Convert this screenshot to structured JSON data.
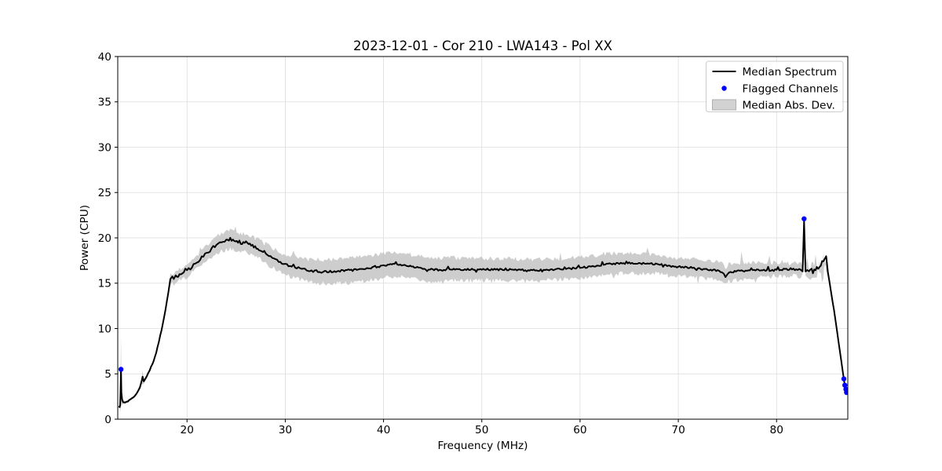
{
  "figure": {
    "title": "2023-12-01 - Cor 210 - LWA143 - Pol XX"
  },
  "chart_data": {
    "type": "line",
    "title": "2023-12-01 - Cor 210 - LWA143 - Pol XX",
    "xlabel": "Frequency (MHz)",
    "ylabel": "Power (CPU)",
    "xlim": [
      12.95,
      87.25
    ],
    "ylim": [
      0,
      40
    ],
    "x_ticks": [
      20,
      30,
      40,
      50,
      60,
      70,
      80
    ],
    "y_ticks": [
      0,
      5,
      10,
      15,
      20,
      25,
      30,
      35,
      40
    ],
    "grid": true,
    "grid_color": "#dcdcdc",
    "legend": {
      "position": "upper right",
      "entries": [
        {
          "label": "Median Spectrum",
          "type": "line",
          "color": "#000000"
        },
        {
          "label": "Flagged Channels",
          "type": "dot",
          "color": "#0000ff"
        },
        {
          "label": "Median Abs. Dev.",
          "type": "patch",
          "color": "#cccccc"
        }
      ]
    },
    "median_spectrum": {
      "name": "Median Spectrum",
      "color": "#000000",
      "anchors_format": [
        "freq_mhz",
        "median_power",
        "median_abs_dev"
      ],
      "anchors": [
        [
          13.05,
          1.45,
          0.12
        ],
        [
          13.15,
          1.35,
          0.2
        ],
        [
          13.2,
          1.6,
          0.3
        ],
        [
          13.24,
          3.2,
          2.4
        ],
        [
          13.28,
          5.5,
          3.45
        ],
        [
          13.32,
          3.0,
          1.6
        ],
        [
          13.4,
          2.1,
          0.4
        ],
        [
          13.5,
          1.9,
          0.25
        ],
        [
          13.7,
          1.8,
          0.15
        ],
        [
          14.0,
          2.0,
          0.12
        ],
        [
          14.4,
          2.3,
          0.12
        ],
        [
          14.8,
          2.7,
          0.15
        ],
        [
          15.2,
          3.5,
          0.25
        ],
        [
          15.4,
          4.3,
          0.45
        ],
        [
          15.48,
          4.65,
          0.75
        ],
        [
          15.6,
          4.15,
          0.25
        ],
        [
          15.9,
          4.75,
          0.2
        ],
        [
          16.2,
          5.4,
          0.2
        ],
        [
          16.6,
          6.4,
          0.2
        ],
        [
          17.0,
          7.9,
          0.25
        ],
        [
          17.4,
          9.8,
          0.3
        ],
        [
          17.8,
          12.0,
          0.35
        ],
        [
          18.1,
          14.0,
          0.45
        ],
        [
          18.3,
          15.3,
          0.55
        ],
        [
          18.5,
          15.6,
          0.55
        ],
        [
          18.65,
          15.45,
          0.5
        ],
        [
          18.85,
          15.7,
          0.55
        ],
        [
          19.1,
          15.85,
          0.6
        ],
        [
          19.5,
          16.0,
          0.6
        ],
        [
          20.0,
          16.35,
          0.65
        ],
        [
          20.5,
          16.8,
          0.7
        ],
        [
          21.0,
          17.3,
          0.75
        ],
        [
          21.5,
          17.8,
          0.8
        ],
        [
          22.0,
          18.3,
          0.85
        ],
        [
          22.5,
          18.75,
          0.9
        ],
        [
          23.0,
          19.15,
          0.95
        ],
        [
          23.5,
          19.5,
          1.0
        ],
        [
          24.0,
          19.75,
          1.05
        ],
        [
          24.4,
          19.85,
          1.05
        ],
        [
          24.8,
          19.6,
          1.0
        ],
        [
          25.2,
          19.55,
          1.0
        ],
        [
          25.6,
          19.4,
          1.0
        ],
        [
          26.0,
          19.5,
          1.0
        ],
        [
          26.4,
          19.3,
          1.0
        ],
        [
          26.8,
          19.05,
          1.0
        ],
        [
          27.2,
          18.85,
          1.0
        ],
        [
          27.6,
          18.55,
          1.0
        ],
        [
          28.0,
          18.25,
          1.05
        ],
        [
          28.5,
          17.95,
          1.05
        ],
        [
          29.0,
          17.6,
          1.1
        ],
        [
          29.5,
          17.35,
          1.1
        ],
        [
          30.0,
          17.05,
          1.1
        ],
        [
          30.5,
          16.9,
          1.1
        ],
        [
          31.0,
          16.75,
          1.15
        ],
        [
          31.5,
          16.6,
          1.15
        ],
        [
          32.0,
          16.5,
          1.2
        ],
        [
          32.5,
          16.4,
          1.25
        ],
        [
          33.0,
          16.32,
          1.3
        ],
        [
          33.5,
          16.28,
          1.3
        ],
        [
          34.0,
          16.25,
          1.35
        ],
        [
          35.0,
          16.3,
          1.35
        ],
        [
          36.0,
          16.4,
          1.35
        ],
        [
          37.0,
          16.5,
          1.35
        ],
        [
          38.0,
          16.6,
          1.35
        ],
        [
          39.0,
          16.75,
          1.35
        ],
        [
          40.0,
          16.9,
          1.35
        ],
        [
          40.7,
          17.05,
          1.35
        ],
        [
          41.4,
          17.1,
          1.3
        ],
        [
          42.0,
          17.0,
          1.3
        ],
        [
          43.0,
          16.8,
          1.3
        ],
        [
          44.0,
          16.6,
          1.3
        ],
        [
          45.0,
          16.5,
          1.3
        ],
        [
          46.0,
          16.45,
          1.3
        ],
        [
          47.0,
          16.55,
          1.25
        ],
        [
          48.0,
          16.5,
          1.25
        ],
        [
          49.0,
          16.5,
          1.2
        ],
        [
          50.0,
          16.55,
          1.2
        ],
        [
          51.0,
          16.5,
          1.2
        ],
        [
          52.0,
          16.5,
          1.2
        ],
        [
          53.0,
          16.5,
          1.2
        ],
        [
          54.0,
          16.45,
          1.2
        ],
        [
          55.0,
          16.4,
          1.2
        ],
        [
          56.0,
          16.45,
          1.2
        ],
        [
          57.0,
          16.5,
          1.15
        ],
        [
          58.0,
          16.55,
          1.15
        ],
        [
          59.0,
          16.6,
          1.15
        ],
        [
          60.0,
          16.7,
          1.15
        ],
        [
          61.0,
          16.8,
          1.15
        ],
        [
          62.0,
          16.95,
          1.15
        ],
        [
          62.4,
          17.1,
          1.15
        ],
        [
          63.0,
          17.15,
          1.15
        ],
        [
          64.0,
          17.15,
          1.1
        ],
        [
          65.0,
          17.2,
          1.1
        ],
        [
          66.0,
          17.15,
          1.1
        ],
        [
          67.0,
          17.15,
          1.05
        ],
        [
          68.0,
          17.1,
          1.05
        ],
        [
          68.6,
          16.95,
          1.05
        ],
        [
          69.0,
          16.9,
          1.05
        ],
        [
          70.0,
          16.8,
          1.0
        ],
        [
          71.0,
          16.75,
          1.0
        ],
        [
          72.0,
          16.6,
          1.0
        ],
        [
          73.0,
          16.5,
          1.0
        ],
        [
          74.0,
          16.4,
          0.95
        ],
        [
          74.45,
          16.25,
          0.95
        ],
        [
          74.8,
          15.7,
          0.9
        ],
        [
          75.15,
          16.15,
          0.95
        ],
        [
          75.6,
          16.25,
          0.95
        ],
        [
          76.0,
          16.3,
          0.95
        ],
        [
          77.0,
          16.4,
          0.85
        ],
        [
          78.0,
          16.45,
          0.8
        ],
        [
          79.0,
          16.45,
          0.75
        ],
        [
          80.0,
          16.5,
          0.7
        ],
        [
          81.0,
          16.55,
          0.68
        ],
        [
          82.0,
          16.5,
          0.66
        ],
        [
          82.3,
          16.45,
          0.63
        ],
        [
          82.65,
          16.4,
          0.6
        ],
        [
          82.8,
          21.7,
          0.5
        ],
        [
          82.95,
          16.3,
          0.62
        ],
        [
          83.3,
          16.4,
          0.6
        ],
        [
          83.7,
          16.45,
          0.6
        ],
        [
          84.1,
          16.55,
          0.6
        ],
        [
          84.5,
          16.65,
          0.62
        ],
        [
          84.9,
          17.3,
          0.7
        ],
        [
          85.05,
          17.4,
          0.6
        ],
        [
          85.4,
          15.0,
          0.5
        ],
        [
          85.85,
          12.0,
          0.45
        ],
        [
          86.15,
          9.8,
          0.4
        ],
        [
          86.6,
          6.3,
          0.3
        ],
        [
          86.9,
          4.1,
          0.28
        ],
        [
          87.15,
          2.8,
          0.25
        ]
      ],
      "impulses": [
        [
          19.8,
          0.25
        ],
        [
          22.6,
          0.3
        ],
        [
          25.3,
          0.3
        ],
        [
          27.9,
          0.3
        ],
        [
          30.8,
          0.25
        ],
        [
          33.6,
          -0.2
        ],
        [
          36.8,
          -0.2
        ],
        [
          39.2,
          0.2
        ],
        [
          41.2,
          0.25
        ],
        [
          44.5,
          -0.2
        ],
        [
          46.6,
          0.25
        ],
        [
          49.4,
          -0.2
        ],
        [
          52.4,
          0.2
        ],
        [
          54.6,
          -0.2
        ],
        [
          56.2,
          -0.2
        ],
        [
          58.4,
          0.2
        ],
        [
          59.8,
          0.25
        ],
        [
          62.3,
          0.2
        ],
        [
          64.7,
          0.2
        ],
        [
          66.5,
          0.2
        ],
        [
          68.4,
          -0.2
        ],
        [
          71.8,
          -0.2
        ],
        [
          77.5,
          0.3
        ],
        [
          79.2,
          0.3
        ],
        [
          80.15,
          0.3
        ],
        [
          81.5,
          0.25
        ],
        [
          83.6,
          0.3
        ],
        [
          84.25,
          0.35
        ],
        [
          84.7,
          0.4
        ],
        [
          85.0,
          0.3
        ]
      ]
    },
    "flagged_channels": {
      "name": "Flagged Channels",
      "color": "#0000ff",
      "points": [
        [
          13.28,
          5.5
        ],
        [
          82.8,
          22.1
        ],
        [
          86.85,
          4.45
        ],
        [
          86.95,
          3.75
        ],
        [
          87.05,
          3.3
        ],
        [
          87.12,
          2.95
        ]
      ]
    },
    "mad_band": {
      "name": "Median Abs. Dev.",
      "fill_color": "#c4c4c4",
      "fill_opacity": 0.85,
      "band_impulses": [
        [
          21.3,
          0.5
        ],
        [
          25.0,
          0.5
        ],
        [
          30.9,
          0.5
        ],
        [
          36.5,
          -0.5
        ],
        [
          47.2,
          0.5
        ],
        [
          51.0,
          -0.5
        ],
        [
          58.0,
          0.5
        ],
        [
          63.5,
          -0.5
        ],
        [
          66.9,
          0.6
        ],
        [
          72.0,
          -0.5
        ],
        [
          76.5,
          1.2
        ],
        [
          77.8,
          -0.7
        ],
        [
          79.35,
          0.7
        ],
        [
          80.6,
          0.65
        ],
        [
          83.1,
          0.6
        ],
        [
          83.35,
          -0.55
        ],
        [
          83.9,
          0.7
        ],
        [
          84.15,
          -0.6
        ],
        [
          84.6,
          0.8
        ]
      ]
    },
    "noise": {
      "seed": 42,
      "step_mhz": 0.15,
      "line_amp": [
        [
          13,
          16.2,
          0.04
        ],
        [
          16.2,
          18,
          0.08
        ],
        [
          18,
          26,
          0.17
        ],
        [
          26,
          34,
          0.13
        ],
        [
          34,
          79,
          0.1
        ],
        [
          79,
          83.5,
          0.15
        ],
        [
          83.5,
          85.05,
          0.38
        ],
        [
          85.05,
          87.2,
          0.06
        ]
      ],
      "band_amp": [
        [
          13,
          16.2,
          0.06
        ],
        [
          16.2,
          18,
          0.1
        ],
        [
          18,
          26,
          0.24
        ],
        [
          26,
          34,
          0.27
        ],
        [
          34,
          79,
          0.24
        ],
        [
          79,
          82.95,
          0.35
        ],
        [
          82.95,
          84.1,
          0.6
        ],
        [
          84.1,
          85.05,
          1.25
        ],
        [
          85.05,
          87.2,
          0.1
        ]
      ]
    }
  }
}
